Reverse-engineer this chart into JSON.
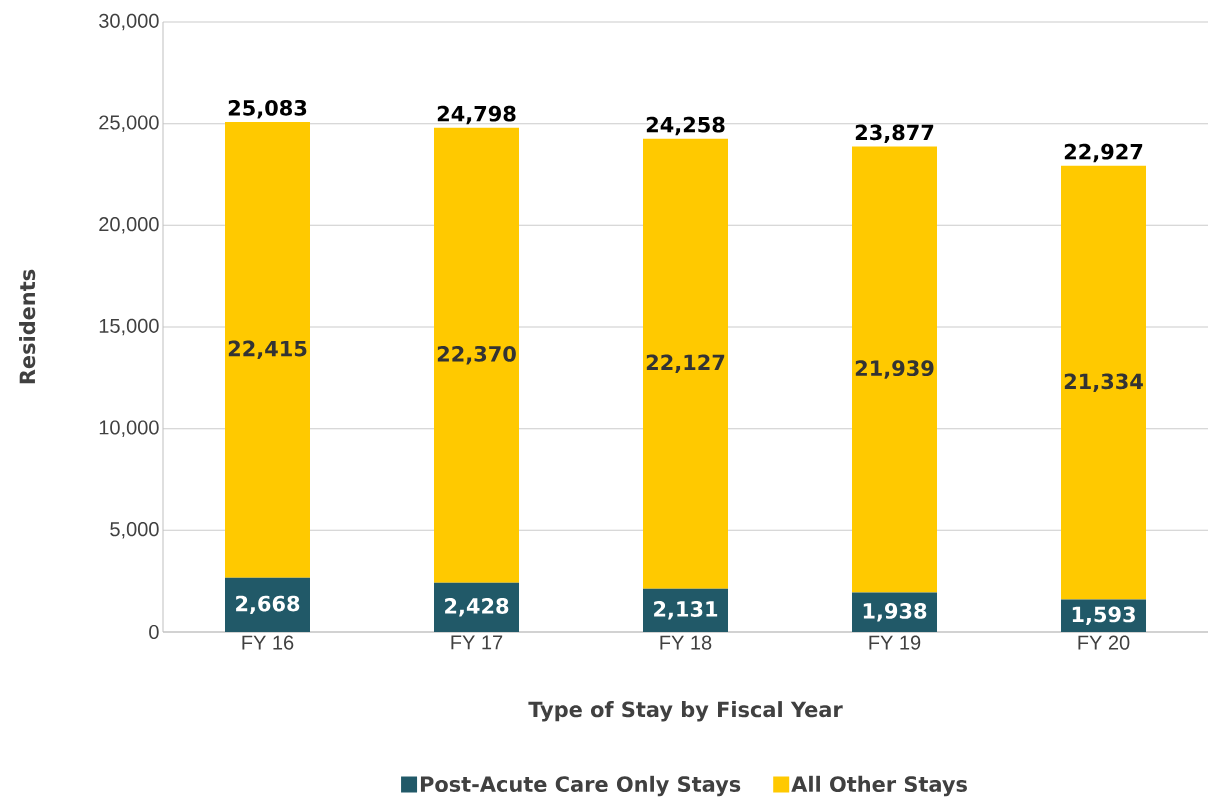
{
  "chart_data": {
    "type": "bar",
    "stacked": true,
    "xlabel": "Type of Stay by Fiscal Year",
    "ylabel": "Residents",
    "categories": [
      "FY 16",
      "FY 17",
      "FY 18",
      "FY 19",
      "FY 20"
    ],
    "series": [
      {
        "name": "Post-Acute Care Only Stays",
        "color": "#215968",
        "values": [
          2668,
          2428,
          2131,
          1938,
          1593
        ],
        "value_labels": [
          "2,668",
          "2,428",
          "2,131",
          "1,938",
          "1,593"
        ]
      },
      {
        "name": "All Other Stays",
        "color": "#ffc900",
        "values": [
          22415,
          22370,
          22127,
          21939,
          21334
        ],
        "value_labels": [
          "22,415",
          "22,370",
          "22,127",
          "21,939",
          "21,334"
        ]
      }
    ],
    "totals": [
      "25,083",
      "24,798",
      "24,258",
      "23,877",
      "22,927"
    ],
    "ylim": [
      0,
      30000
    ],
    "yticks": [
      0,
      {
        "value": 5000,
        "label": "5,000"
      },
      {
        "value": 10000,
        "label": "10,000"
      },
      {
        "value": 15000,
        "label": "15,000"
      },
      {
        "value": 20000,
        "label": "20,000"
      },
      {
        "value": 25000,
        "label": "25,000"
      },
      {
        "value": 30000,
        "label": "30,000"
      }
    ],
    "grid": "y",
    "legend": "bottom"
  }
}
